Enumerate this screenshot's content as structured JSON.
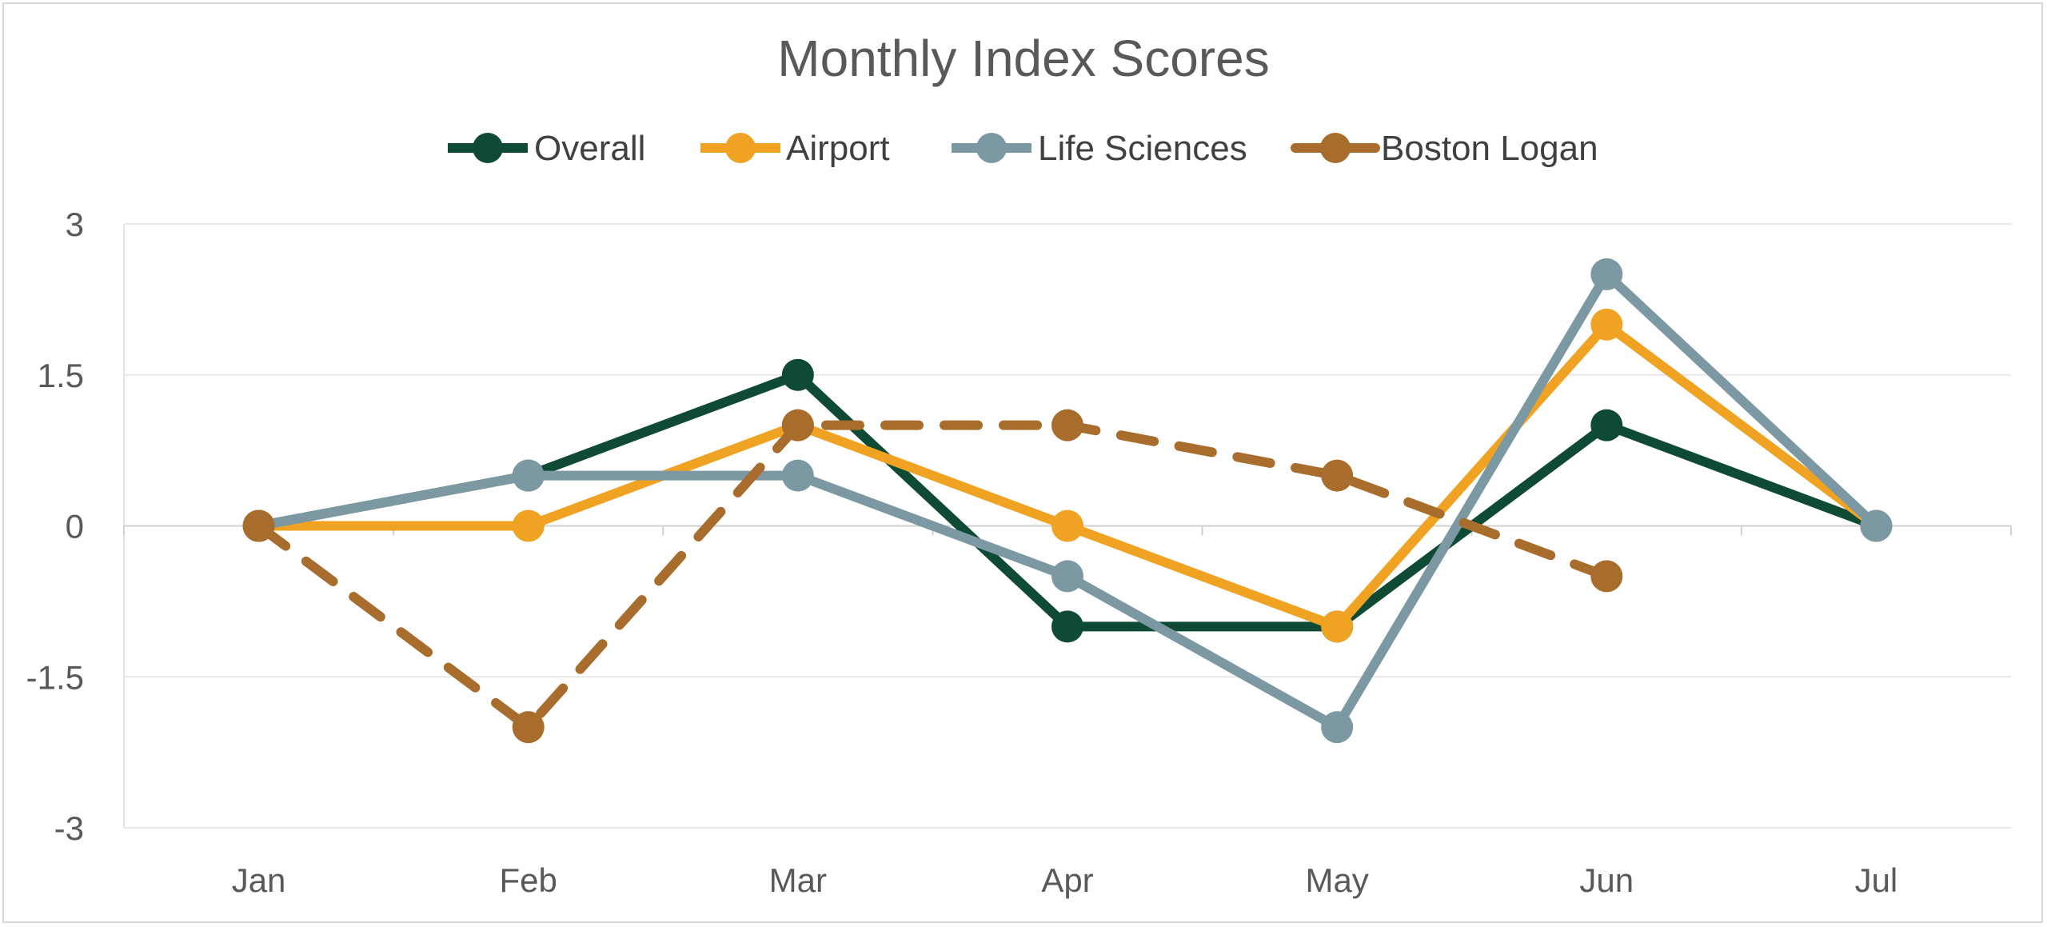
{
  "chart_data": {
    "type": "line",
    "title": "Monthly Index Scores",
    "xlabel": "",
    "ylabel": "",
    "categories": [
      "Jan",
      "Feb",
      "Mar",
      "Apr",
      "May",
      "Jun",
      "Jul"
    ],
    "ylim": [
      -3,
      3
    ],
    "yticks": [
      3,
      1.5,
      0,
      -1.5,
      -3
    ],
    "ytick_labels": [
      "3",
      "1.5",
      "0",
      "-1.5",
      "-3"
    ],
    "grid": true,
    "legend_position": "top",
    "series": [
      {
        "name": "Overall",
        "color": "#0f4a35",
        "dashed": false,
        "values": [
          0,
          0.5,
          1.5,
          -1,
          -1,
          1,
          0
        ]
      },
      {
        "name": "Airport",
        "color": "#f0a322",
        "dashed": false,
        "values": [
          0,
          0,
          1,
          0,
          -1,
          2,
          0
        ]
      },
      {
        "name": "Life Sciences",
        "color": "#7b98a3",
        "dashed": false,
        "values": [
          0,
          0.5,
          0.5,
          -0.5,
          -2,
          2.5,
          0
        ]
      },
      {
        "name": "Boston Logan",
        "color": "#a86c2c",
        "dashed": true,
        "values": [
          0,
          -2,
          1,
          1,
          0.5,
          -0.5,
          null
        ]
      }
    ]
  }
}
